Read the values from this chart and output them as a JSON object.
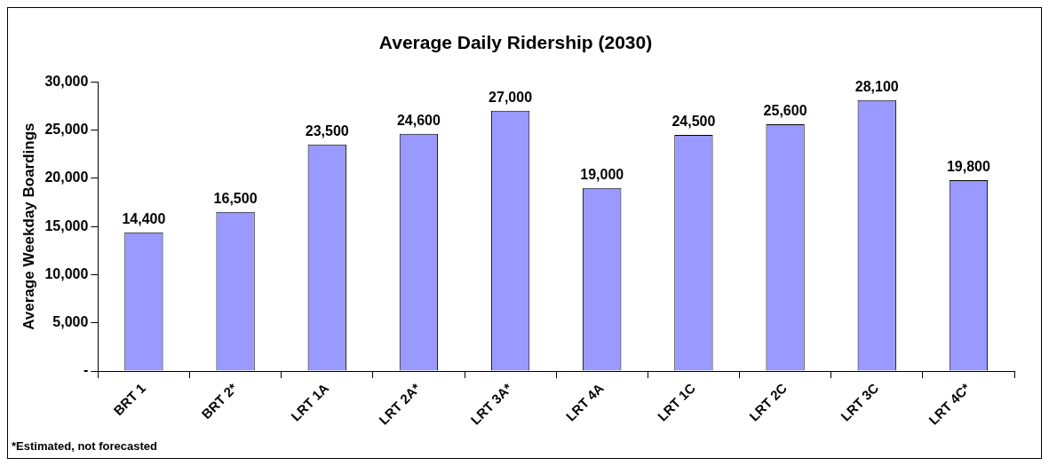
{
  "chart_data": {
    "type": "bar",
    "title": "Average Daily Ridership (2030)",
    "ylabel": "Average Weekday Boardings",
    "categories": [
      "BRT 1",
      "BRT 2*",
      "LRT 1A",
      "LRT 2A*",
      "LRT 3A*",
      "LRT 4A",
      "LRT 1C",
      "LRT 2C",
      "LRT 3C",
      "LRT 4C*"
    ],
    "values": [
      14400,
      16500,
      23500,
      24600,
      27000,
      19000,
      24500,
      25600,
      28100,
      19800
    ],
    "value_labels": [
      "14,400",
      "16,500",
      "23,500",
      "24,600",
      "27,000",
      "19,000",
      "24,500",
      "25,600",
      "28,100",
      "19,800"
    ],
    "color": "#9999ff",
    "ylim": [
      0,
      30000
    ],
    "yticks": [
      {
        "value": 0,
        "label": "-"
      },
      {
        "value": 5000,
        "label": "5,000"
      },
      {
        "value": 10000,
        "label": "10,000"
      },
      {
        "value": 15000,
        "label": "15,000"
      },
      {
        "value": 20000,
        "label": "20,000"
      },
      {
        "value": 25000,
        "label": "25,000"
      },
      {
        "value": 30000,
        "label": "30,000"
      }
    ],
    "grid": false,
    "legend": false,
    "annotations": [
      "*Estimated, not forecasted"
    ]
  }
}
